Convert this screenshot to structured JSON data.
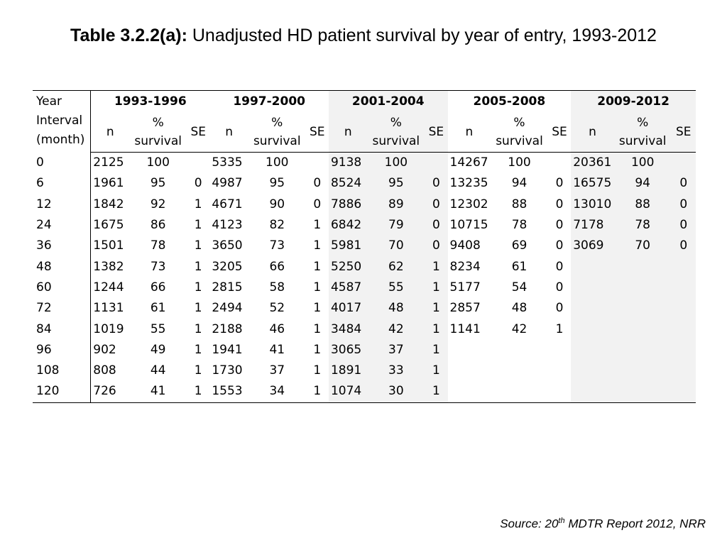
{
  "title": {
    "label": "Table 3.2.2(a):",
    "text": "Unadjusted HD patient survival by year of entry, 1993-2012"
  },
  "table": {
    "interval_header": [
      "Year",
      "Interval",
      "(month)"
    ],
    "groups": [
      "1993-1996",
      "1997-2000",
      "2001-2004",
      "2005-2008",
      "2009-2012"
    ],
    "sub_headers": {
      "n": "n",
      "pct_line1": "%",
      "pct_line2": "survival",
      "se": "SE"
    },
    "rows": [
      {
        "interval": "0",
        "cells": [
          [
            "2125",
            "100",
            ""
          ],
          [
            "5335",
            "100",
            ""
          ],
          [
            "9138",
            "100",
            ""
          ],
          [
            "14267",
            "100",
            ""
          ],
          [
            "20361",
            "100",
            ""
          ]
        ]
      },
      {
        "interval": "6",
        "cells": [
          [
            "1961",
            "95",
            "0"
          ],
          [
            "4987",
            "95",
            "0"
          ],
          [
            "8524",
            "95",
            "0"
          ],
          [
            "13235",
            "94",
            "0"
          ],
          [
            "16575",
            "94",
            "0"
          ]
        ]
      },
      {
        "interval": "12",
        "cells": [
          [
            "1842",
            "92",
            "1"
          ],
          [
            "4671",
            "90",
            "0"
          ],
          [
            "7886",
            "89",
            "0"
          ],
          [
            "12302",
            "88",
            "0"
          ],
          [
            "13010",
            "88",
            "0"
          ]
        ]
      },
      {
        "interval": "24",
        "cells": [
          [
            "1675",
            "86",
            "1"
          ],
          [
            "4123",
            "82",
            "1"
          ],
          [
            "6842",
            "79",
            "0"
          ],
          [
            "10715",
            "78",
            "0"
          ],
          [
            "7178",
            "78",
            "0"
          ]
        ]
      },
      {
        "interval": "36",
        "cells": [
          [
            "1501",
            "78",
            "1"
          ],
          [
            "3650",
            "73",
            "1"
          ],
          [
            "5981",
            "70",
            "0"
          ],
          [
            "9408",
            "69",
            "0"
          ],
          [
            "3069",
            "70",
            "0"
          ]
        ]
      },
      {
        "interval": "48",
        "cells": [
          [
            "1382",
            "73",
            "1"
          ],
          [
            "3205",
            "66",
            "1"
          ],
          [
            "5250",
            "62",
            "1"
          ],
          [
            "8234",
            "61",
            "0"
          ],
          [
            "",
            "",
            ""
          ]
        ]
      },
      {
        "interval": "60",
        "cells": [
          [
            "1244",
            "66",
            "1"
          ],
          [
            "2815",
            "58",
            "1"
          ],
          [
            "4587",
            "55",
            "1"
          ],
          [
            "5177",
            "54",
            "0"
          ],
          [
            "",
            "",
            ""
          ]
        ]
      },
      {
        "interval": "72",
        "cells": [
          [
            "1131",
            "61",
            "1"
          ],
          [
            "2494",
            "52",
            "1"
          ],
          [
            "4017",
            "48",
            "1"
          ],
          [
            "2857",
            "48",
            "0"
          ],
          [
            "",
            "",
            ""
          ]
        ]
      },
      {
        "interval": "84",
        "cells": [
          [
            "1019",
            "55",
            "1"
          ],
          [
            "2188",
            "46",
            "1"
          ],
          [
            "3484",
            "42",
            "1"
          ],
          [
            "1141",
            "42",
            "1"
          ],
          [
            "",
            "",
            ""
          ]
        ]
      },
      {
        "interval": "96",
        "cells": [
          [
            "902",
            "49",
            "1"
          ],
          [
            "1941",
            "41",
            "1"
          ],
          [
            "3065",
            "37",
            "1"
          ],
          [
            "",
            "",
            ""
          ],
          [
            "",
            "",
            ""
          ]
        ]
      },
      {
        "interval": "108",
        "cells": [
          [
            "808",
            "44",
            "1"
          ],
          [
            "1730",
            "37",
            "1"
          ],
          [
            "1891",
            "33",
            "1"
          ],
          [
            "",
            "",
            ""
          ],
          [
            "",
            "",
            ""
          ]
        ]
      },
      {
        "interval": "120",
        "cells": [
          [
            "726",
            "41",
            "1"
          ],
          [
            "1553",
            "34",
            "1"
          ],
          [
            "1074",
            "30",
            "1"
          ],
          [
            "",
            "",
            ""
          ],
          [
            "",
            "",
            ""
          ]
        ]
      }
    ]
  },
  "source": {
    "prefix": "Source: 20",
    "sup": "th",
    "suffix": " MDTR Report 2012, NRR"
  },
  "colors": {
    "shade": "#f2f2f2",
    "text": "#000000"
  }
}
